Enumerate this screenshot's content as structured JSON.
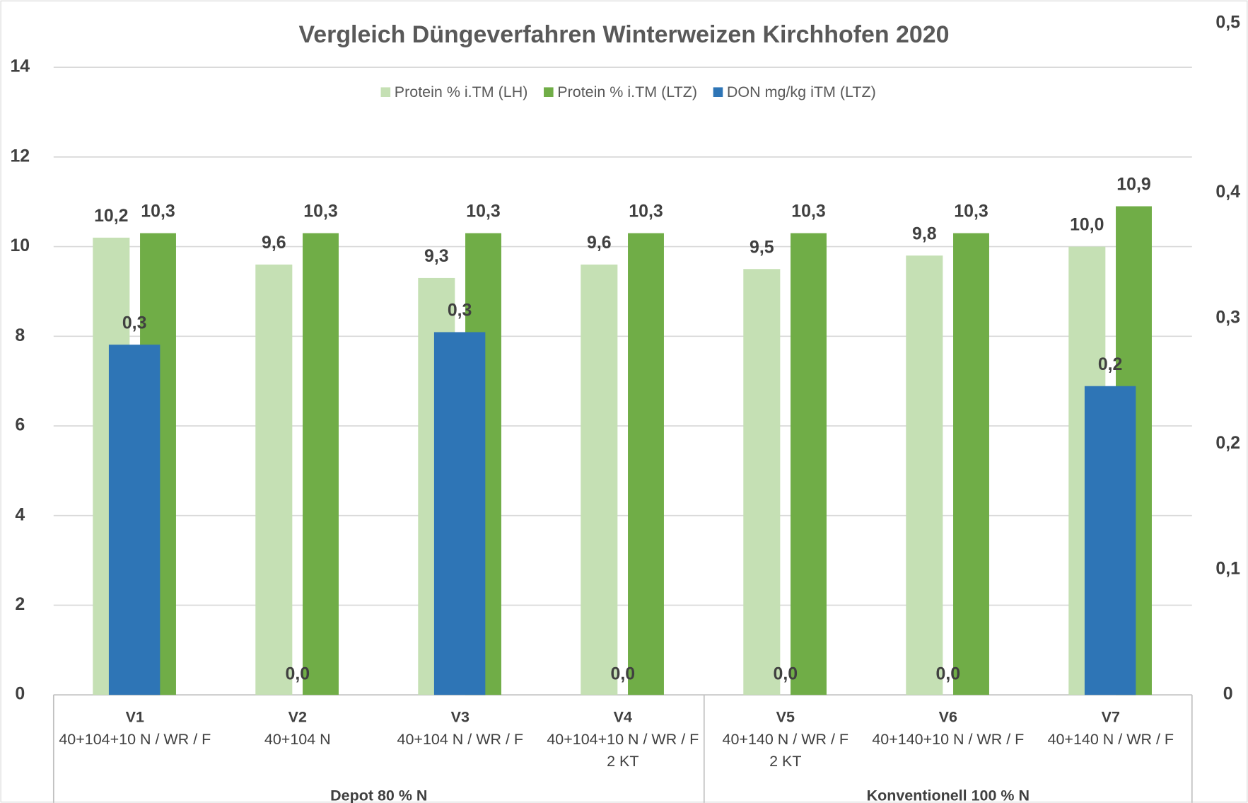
{
  "chart_data": {
    "type": "bar",
    "title": "Vergleich Düngeverfahren Winterweizen Kirchhofen 2020",
    "groups": [
      {
        "label": "Depot 80 % N",
        "categories": [
          [
            "V1",
            "40+104+10 N / WR / F"
          ],
          [
            "V2",
            "40+104 N"
          ],
          [
            "V3",
            "40+104 N / WR / F"
          ],
          [
            "V4",
            "40+104+10 N / WR / F",
            "2 KT"
          ]
        ]
      },
      {
        "label": "Konventionell 100 % N",
        "categories": [
          [
            "V5",
            "40+140 N / WR / F",
            "2 KT"
          ],
          [
            "V6",
            "40+140+10 N / WR / F"
          ],
          [
            "V7",
            "40+140 N / WR / F"
          ]
        ]
      }
    ],
    "series": [
      {
        "name": "Protein % i.TM (LH)",
        "color": "#c5e0b4",
        "values": [
          10.2,
          9.6,
          9.3,
          9.6,
          9.5,
          9.8,
          10.0
        ],
        "value_labels": [
          "10,2",
          "9,6",
          "9,3",
          "9,6",
          "9,5",
          "9,8",
          "10,0"
        ]
      },
      {
        "name": "Protein % i.TM (LTZ)",
        "color": "#70ad47",
        "values": [
          10.3,
          10.3,
          10.3,
          10.3,
          10.3,
          10.3,
          10.9
        ],
        "value_labels": [
          "10,3",
          "10,3",
          "10,3",
          "10,3",
          "10,3",
          "10,3",
          "10,9"
        ]
      },
      {
        "name": "DON mg/kg iTM (LTZ)",
        "color": "#2e75b6",
        "axis": "y2",
        "values": [
          0.279,
          0,
          0.289,
          0,
          0,
          0,
          0.246
        ],
        "value_labels": [
          "0,3",
          "0,0",
          "0,3",
          "0,0",
          "0,0",
          "0,0",
          "0,2"
        ]
      }
    ],
    "ylim": [
      0,
      14
    ],
    "yticks": [
      0,
      2,
      4,
      6,
      8,
      10,
      12,
      14
    ],
    "y2lim": [
      0,
      0.5
    ],
    "y2ticks": [
      0,
      {
        "value": 0.1,
        "label": "0,1"
      },
      {
        "value": 0.2,
        "label": "0,2"
      },
      {
        "value": 0.3,
        "label": "0,3"
      },
      {
        "value": 0.4,
        "label": "0,4"
      },
      {
        "value": 0.5,
        "label": "0,5"
      }
    ],
    "grid": true,
    "legend": "top"
  }
}
